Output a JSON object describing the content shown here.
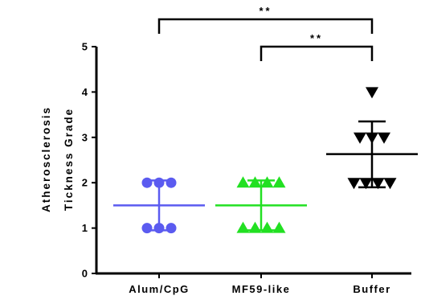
{
  "chart_data": {
    "type": "scatter",
    "ylabel_lines": [
      "Atherosclerosis",
      "Tickness Grade"
    ],
    "ylim": [
      0,
      5
    ],
    "yticks": [
      "0",
      "1",
      "2",
      "3",
      "4",
      "5"
    ],
    "categories": [
      "Alum/CpG",
      "MF59-like",
      "Buffer"
    ],
    "grid": false,
    "series": [
      {
        "marker": "circle",
        "color": "#5b5bf0",
        "values": [
          2,
          2,
          2,
          1,
          1,
          1
        ],
        "mean": 1.5,
        "sd_upper": 2.05,
        "sd_lower": 0.95
      },
      {
        "marker": "triangle-up",
        "color": "#22e022",
        "values": [
          2,
          2,
          2,
          2,
          1,
          1,
          1,
          1
        ],
        "mean": 1.5,
        "sd_upper": 2.05,
        "sd_lower": 0.95
      },
      {
        "marker": "triangle-down",
        "color": "#000000",
        "values": [
          4,
          3,
          3,
          3,
          2,
          2,
          2,
          2
        ],
        "mean": 2.63,
        "sd_upper": 3.35,
        "sd_lower": 1.9
      }
    ],
    "significance": [
      {
        "from": 0,
        "to": 2,
        "label": "**"
      },
      {
        "from": 1,
        "to": 2,
        "label": "**"
      }
    ]
  }
}
